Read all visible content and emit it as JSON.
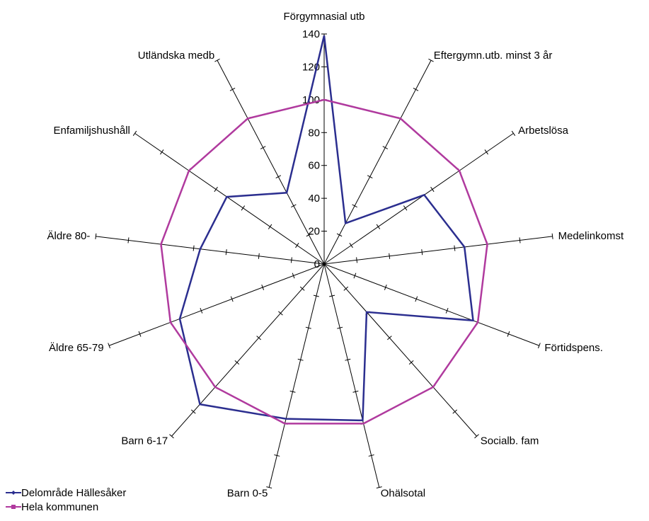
{
  "chart_data": {
    "type": "radar",
    "axes": [
      "Förgymnasial utb",
      "Eftergymn.utb. minst 3 år",
      "Arbetslösa",
      "Medelinkomst",
      "Förtidspens.",
      "Socialb. fam",
      "Ohälsotal",
      "Barn 0-5",
      "Barn 6-17",
      "Äldre 65-79",
      "Äldre 80-",
      "Enfamiljshushåll",
      "Utländska medb"
    ],
    "radial_ticks": [
      "0",
      "20",
      "40",
      "60",
      "80",
      "100",
      "120",
      "140"
    ],
    "rmax": 140,
    "series": [
      {
        "name": "Delområde Hällesåker",
        "color": "#2b2e8f",
        "values": [
          139,
          28,
          74,
          86,
          97,
          39,
          98,
          97,
          114,
          94,
          76,
          72,
          49
        ]
      },
      {
        "name": "Hela kommunen",
        "color": "#b03a9e",
        "values": [
          100,
          100,
          100,
          100,
          100,
          100,
          100,
          100,
          100,
          100,
          100,
          100,
          100
        ]
      }
    ],
    "legend_position": "bottom-left",
    "grid": false
  }
}
